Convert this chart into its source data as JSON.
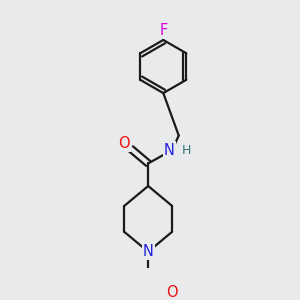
{
  "background_color": "#e8eaeb",
  "line_color": "#1a1a1a",
  "bond_width": 1.6,
  "atom_colors": {
    "O": "#ee1111",
    "N": "#2222dd",
    "F": "#dd00dd",
    "H": "#337777",
    "C": "#1a1a1a"
  },
  "font_size_atom": 10.5
}
